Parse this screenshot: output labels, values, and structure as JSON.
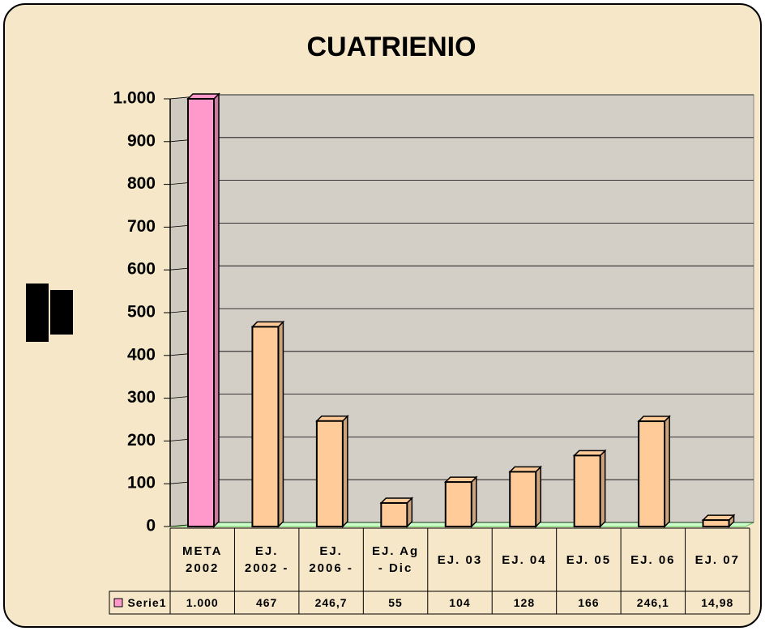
{
  "chart_data": {
    "type": "bar3d",
    "title": "CUATRIENIO",
    "categories": [
      "META 2002",
      "EJ. 2002 -",
      "EJ. 2006 -",
      "EJ. Ag - Dic",
      "EJ. 03",
      "EJ. 04",
      "EJ. 05",
      "EJ. 06",
      "EJ. 07"
    ],
    "series": [
      {
        "name": "Serie1",
        "color": "#ff99cc",
        "colors": [
          "#ff99cc",
          "#ffcc99",
          "#ffcc99",
          "#ffcc99",
          "#ffcc99",
          "#ffcc99",
          "#ffcc99",
          "#ffcc99",
          "#ffcc99"
        ],
        "values": [
          1000,
          467,
          246.7,
          55,
          104,
          128,
          166,
          246.1,
          14.98
        ],
        "value_labels": [
          "1.000",
          "467",
          "246,7",
          "55",
          "104",
          "128",
          "166",
          "246,1",
          "14,98"
        ]
      }
    ],
    "ylim": [
      0,
      1000
    ],
    "yticks": [
      0,
      100,
      200,
      300,
      400,
      500,
      600,
      700,
      800,
      900,
      {
        "value": 1000,
        "label": "1.000"
      }
    ],
    "grid": true,
    "data_table": true
  }
}
